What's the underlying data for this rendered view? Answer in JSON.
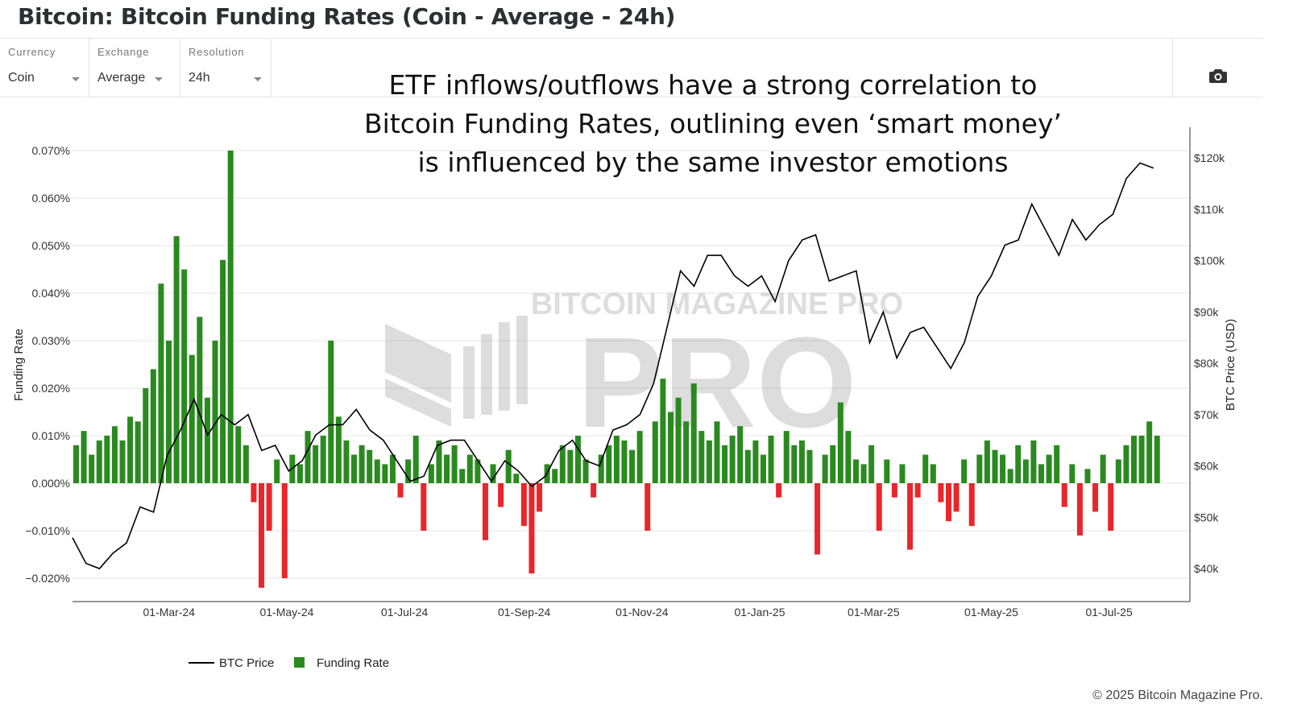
{
  "header": {
    "title": "Bitcoin: Bitcoin Funding Rates (Coin - Average - 24h)"
  },
  "controls": [
    {
      "label": "Currency",
      "value": "Coin"
    },
    {
      "label": "Exchange",
      "value": "Average"
    },
    {
      "label": "Resolution",
      "value": "24h"
    }
  ],
  "toolbar": {
    "screenshot_icon": "camera-icon"
  },
  "annotation": [
    "ETF inflows/outflows have a strong correlation to",
    "Bitcoin Funding Rates, outlining even ‘smart money’",
    "is influenced by the same investor emotions"
  ],
  "watermark": "BITCOIN MAGAZINE PRO",
  "footer": {
    "copyright": "© 2025 Bitcoin Magazine Pro."
  },
  "chart_data": {
    "type": "bar+line",
    "title": "Bitcoin Funding Rates",
    "ylabel": "Funding Rate",
    "y2label": "BTC Price (USD)",
    "ylim": [
      -0.022,
      0.072
    ],
    "y2lim": [
      35000,
      125000
    ],
    "yticks": [
      "0.070%",
      "0.060%",
      "0.050%",
      "0.040%",
      "0.030%",
      "0.020%",
      "0.010%",
      "0.000%",
      "−0.010%",
      "−0.020%"
    ],
    "ytick_values": [
      0.07,
      0.06,
      0.05,
      0.04,
      0.03,
      0.02,
      0.01,
      0,
      -0.01,
      -0.02
    ],
    "y2ticks": [
      "$120k",
      "$110k",
      "$100k",
      "$90k",
      "$80k",
      "$70k",
      "$60k",
      "$50k",
      "$40k"
    ],
    "y2tick_values": [
      120000,
      110000,
      100000,
      90000,
      80000,
      70000,
      60000,
      50000,
      40000
    ],
    "x_start": "2024-01-11",
    "x_end": "2025-07-27",
    "xticks": [
      {
        "label": "01-Mar-24",
        "day": 50
      },
      {
        "label": "01-May-24",
        "day": 111
      },
      {
        "label": "01-Jul-24",
        "day": 172
      },
      {
        "label": "01-Sep-24",
        "day": 234
      },
      {
        "label": "01-Nov-24",
        "day": 295
      },
      {
        "label": "01-Jan-25",
        "day": 356
      },
      {
        "label": "01-Mar-25",
        "day": 415
      },
      {
        "label": "01-May-25",
        "day": 476
      },
      {
        "label": "01-Jul-25",
        "day": 537
      }
    ],
    "legend": {
      "position": "bottom-left",
      "entries": [
        "BTC Price",
        "Funding Rate"
      ]
    },
    "colors": {
      "price": "#000000",
      "positive": "#2a8a1f",
      "negative": "#e8262b"
    },
    "price_step_days": 7,
    "price": [
      46000,
      41000,
      40000,
      43000,
      45000,
      52000,
      51000,
      62000,
      67000,
      73000,
      66000,
      70000,
      68000,
      70000,
      63000,
      64000,
      59000,
      61000,
      66000,
      68000,
      68000,
      71000,
      67000,
      65000,
      61000,
      57000,
      58000,
      64000,
      65000,
      65000,
      61000,
      57000,
      61000,
      59000,
      56000,
      58000,
      63000,
      65000,
      61000,
      60000,
      67000,
      68000,
      70000,
      76000,
      87000,
      98000,
      95000,
      101000,
      101000,
      97000,
      95000,
      97000,
      92000,
      100000,
      104000,
      105000,
      96000,
      97000,
      98000,
      84000,
      90000,
      81000,
      86000,
      87000,
      83000,
      79000,
      84000,
      93000,
      97000,
      103000,
      104000,
      111000,
      106000,
      101000,
      108000,
      104000,
      107000,
      109000,
      116000,
      119000,
      118000
    ],
    "funding_step_days": 4,
    "funding_rate": [
      0.008,
      0.011,
      0.006,
      0.009,
      0.01,
      0.012,
      0.009,
      0.014,
      0.013,
      0.02,
      0.024,
      0.042,
      0.03,
      0.052,
      0.045,
      0.027,
      0.035,
      0.018,
      0.03,
      0.047,
      0.07,
      0.012,
      0.008,
      -0.004,
      -0.022,
      -0.01,
      0.005,
      -0.02,
      0.006,
      0.004,
      0.011,
      0.008,
      0.01,
      0.03,
      0.014,
      0.009,
      0.006,
      0.008,
      0.007,
      0.005,
      0.004,
      0.006,
      -0.003,
      0.005,
      0.01,
      -0.01,
      0.004,
      0.009,
      0.006,
      0.008,
      0.003,
      0.006,
      0.005,
      -0.012,
      0.004,
      -0.005,
      0.007,
      0.002,
      -0.009,
      -0.019,
      -0.006,
      0.004,
      0.003,
      0.008,
      0.007,
      0.01,
      0.005,
      -0.003,
      0.006,
      0.008,
      0.01,
      0.009,
      0.007,
      0.011,
      -0.01,
      0.013,
      0.022,
      0.015,
      0.018,
      0.013,
      0.021,
      0.011,
      0.009,
      0.013,
      0.008,
      0.01,
      0.012,
      0.007,
      0.009,
      0.006,
      0.01,
      -0.003,
      0.011,
      0.008,
      0.009,
      0.007,
      -0.015,
      0.006,
      0.008,
      0.017,
      0.011,
      0.005,
      0.004,
      0.008,
      -0.01,
      0.005,
      -0.003,
      0.004,
      -0.014,
      -0.003,
      0.006,
      0.004,
      -0.004,
      -0.008,
      -0.006,
      0.005,
      -0.009,
      0.006,
      0.009,
      0.007,
      0.006,
      0.003,
      0.008,
      0.005,
      0.009,
      0.004,
      0.006,
      0.008,
      -0.005,
      0.004,
      -0.011,
      0.003,
      -0.006,
      0.006,
      -0.01,
      0.005,
      0.008,
      0.01,
      0.01,
      0.013,
      0.01
    ]
  }
}
